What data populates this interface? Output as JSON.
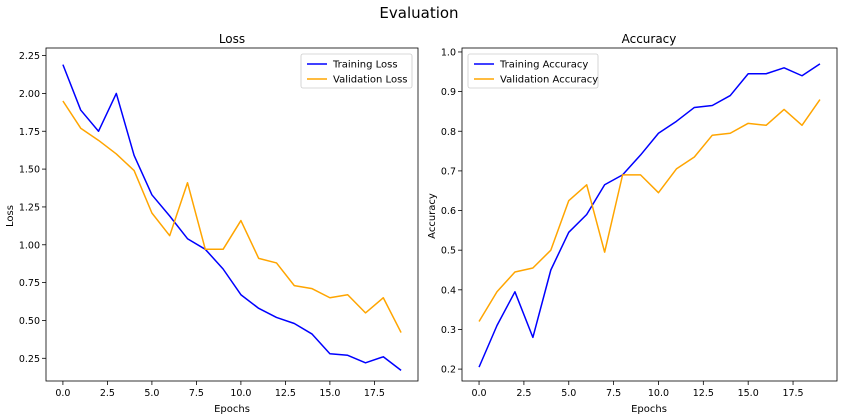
{
  "figure": {
    "title": "Evaluation"
  },
  "chart_data": [
    {
      "type": "line",
      "title": "Loss",
      "xlabel": "Epochs",
      "ylabel": "Loss",
      "xlim": [
        -0.95,
        19.95
      ],
      "ylim": [
        0.1,
        2.3
      ],
      "xticks": [
        0,
        2.5,
        5,
        7.5,
        10,
        12.5,
        15,
        17.5
      ],
      "xtick_labels": [
        "0.0",
        "2.5",
        "5.0",
        "7.5",
        "10.0",
        "12.5",
        "15.0",
        "17.5"
      ],
      "yticks": [
        0.25,
        0.5,
        0.75,
        1.0,
        1.25,
        1.5,
        1.75,
        2.0,
        2.25
      ],
      "ytick_labels": [
        "0.25",
        "0.50",
        "0.75",
        "1.00",
        "1.25",
        "1.50",
        "1.75",
        "2.00",
        "2.25"
      ],
      "legend": "top-right",
      "grid": false,
      "x": [
        0,
        1,
        2,
        3,
        4,
        5,
        6,
        7,
        8,
        9,
        10,
        11,
        12,
        13,
        14,
        15,
        16,
        17,
        18,
        19
      ],
      "series": [
        {
          "name": "Training Loss",
          "color": "#0000ff",
          "values": [
            2.19,
            1.89,
            1.75,
            2.0,
            1.59,
            1.33,
            1.19,
            1.04,
            0.97,
            0.84,
            0.67,
            0.58,
            0.52,
            0.48,
            0.41,
            0.28,
            0.27,
            0.22,
            0.26,
            0.17
          ]
        },
        {
          "name": "Validation Loss",
          "color": "#ffa500",
          "values": [
            1.95,
            1.77,
            1.69,
            1.6,
            1.49,
            1.21,
            1.06,
            1.41,
            0.97,
            0.97,
            1.16,
            0.91,
            0.88,
            0.73,
            0.71,
            0.65,
            0.67,
            0.55,
            0.65,
            0.42
          ]
        }
      ]
    },
    {
      "type": "line",
      "title": "Accuracy",
      "xlabel": "Epochs",
      "ylabel": "Accuracy",
      "xlim": [
        -0.95,
        19.95
      ],
      "ylim": [
        0.17,
        1.01
      ],
      "xticks": [
        0,
        2.5,
        5,
        7.5,
        10,
        12.5,
        15,
        17.5
      ],
      "xtick_labels": [
        "0.0",
        "2.5",
        "5.0",
        "7.5",
        "10.0",
        "12.5",
        "15.0",
        "17.5"
      ],
      "yticks": [
        0.2,
        0.3,
        0.4,
        0.5,
        0.6,
        0.7,
        0.8,
        0.9,
        1.0
      ],
      "ytick_labels": [
        "0.2",
        "0.3",
        "0.4",
        "0.5",
        "0.6",
        "0.7",
        "0.8",
        "0.9",
        "1.0"
      ],
      "legend": "top-left",
      "grid": false,
      "x": [
        0,
        1,
        2,
        3,
        4,
        5,
        6,
        7,
        8,
        9,
        10,
        11,
        12,
        13,
        14,
        15,
        16,
        17,
        18,
        19
      ],
      "series": [
        {
          "name": "Training Accuracy",
          "color": "#0000ff",
          "values": [
            0.205,
            0.31,
            0.395,
            0.28,
            0.45,
            0.545,
            0.59,
            0.665,
            0.69,
            0.74,
            0.795,
            0.825,
            0.86,
            0.865,
            0.89,
            0.945,
            0.945,
            0.96,
            0.94,
            0.97
          ]
        },
        {
          "name": "Validation Accuracy",
          "color": "#ffa500",
          "values": [
            0.32,
            0.395,
            0.445,
            0.455,
            0.5,
            0.625,
            0.665,
            0.495,
            0.69,
            0.69,
            0.645,
            0.705,
            0.735,
            0.79,
            0.795,
            0.82,
            0.815,
            0.855,
            0.815,
            0.88
          ]
        }
      ]
    }
  ]
}
